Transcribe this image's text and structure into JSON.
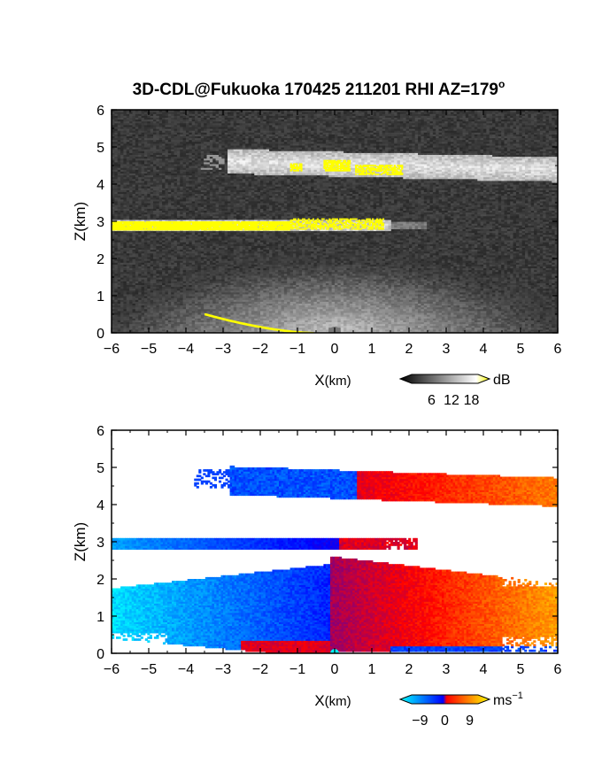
{
  "figure": {
    "title": "3D-CDL@Fukuoka 170425 211201 RHI AZ=179",
    "title_sup": "o"
  },
  "chart_data": [
    {
      "type": "heatmap",
      "quantity": "backscatter intensity",
      "xlabel": "X",
      "xlabel_unit": "(km)",
      "ylabel": "Z(km)",
      "xlim": [
        -6,
        6
      ],
      "ylim": [
        0,
        6
      ],
      "xticks": [
        -6,
        -5,
        -4,
        -3,
        -2,
        -1,
        0,
        1,
        2,
        3,
        4,
        5,
        6
      ],
      "yticks": [
        0,
        1,
        2,
        3,
        4,
        5,
        6
      ],
      "colorbar": {
        "unit": "dB",
        "ticks": [
          6,
          12,
          18
        ],
        "range": [
          0,
          20
        ],
        "colors": [
          "#000000",
          "#ffffff",
          "#ffff00"
        ]
      },
      "features": [
        {
          "name": "cloud layer",
          "x_range": [
            -2.9,
            6
          ],
          "z_range": [
            4.1,
            4.8
          ],
          "level_db": 14
        },
        {
          "name": "cloud base (strong echo)",
          "x_range": [
            -6,
            1.5
          ],
          "z_range": [
            2.75,
            3.0
          ],
          "level_db": 19
        },
        {
          "name": "cloud top echo patches",
          "x_range": [
            -1.2,
            1.8
          ],
          "z_range": [
            4.3,
            4.6
          ],
          "level_db": 19
        },
        {
          "name": "boundary layer aerosol",
          "x_range": [
            -6,
            6
          ],
          "z_range": [
            0,
            2.3
          ],
          "level_db": 11
        },
        {
          "name": "surface line",
          "x_range": [
            -3.5,
            -0.6
          ],
          "z_range": [
            0,
            0.5
          ],
          "level_db": 19
        }
      ]
    },
    {
      "type": "heatmap",
      "quantity": "Doppler velocity",
      "xlabel": "X",
      "xlabel_unit": "(km)",
      "ylabel": "Z(km)",
      "xlim": [
        -6,
        6
      ],
      "ylim": [
        0,
        6
      ],
      "xticks": [
        -6,
        -5,
        -4,
        -3,
        -2,
        -1,
        0,
        1,
        2,
        3,
        4,
        5,
        6
      ],
      "yticks": [
        0,
        1,
        2,
        3,
        4,
        5,
        6
      ],
      "colorbar": {
        "unit": "ms",
        "unit_sup": "−1",
        "ticks": [
          "−9",
          "0",
          "9"
        ],
        "range": [
          -12,
          12
        ],
        "colors": [
          "#00ffff",
          "#0000ff",
          "#ff0000",
          "#ffff00"
        ]
      },
      "features": [
        {
          "name": "upper cloud layer west",
          "x_range": [
            -2.8,
            0.6
          ],
          "z_range": [
            4.2,
            5.0
          ],
          "velocity": -5
        },
        {
          "name": "upper cloud layer east",
          "x_range": [
            0.6,
            6
          ],
          "z_range": [
            3.9,
            4.8
          ],
          "velocity": 6
        },
        {
          "name": "cloud base layer",
          "x_range": [
            -6,
            2.2
          ],
          "z_range": [
            2.7,
            3.2
          ],
          "velocity": -3
        },
        {
          "name": "boundary layer west",
          "x_range": [
            -6,
            -0.1
          ],
          "z_range": [
            0,
            2.4
          ],
          "velocity": -5
        },
        {
          "name": "boundary layer east",
          "x_range": [
            -0.1,
            6
          ],
          "z_range": [
            0,
            2.6
          ],
          "velocity": 6
        }
      ]
    }
  ]
}
